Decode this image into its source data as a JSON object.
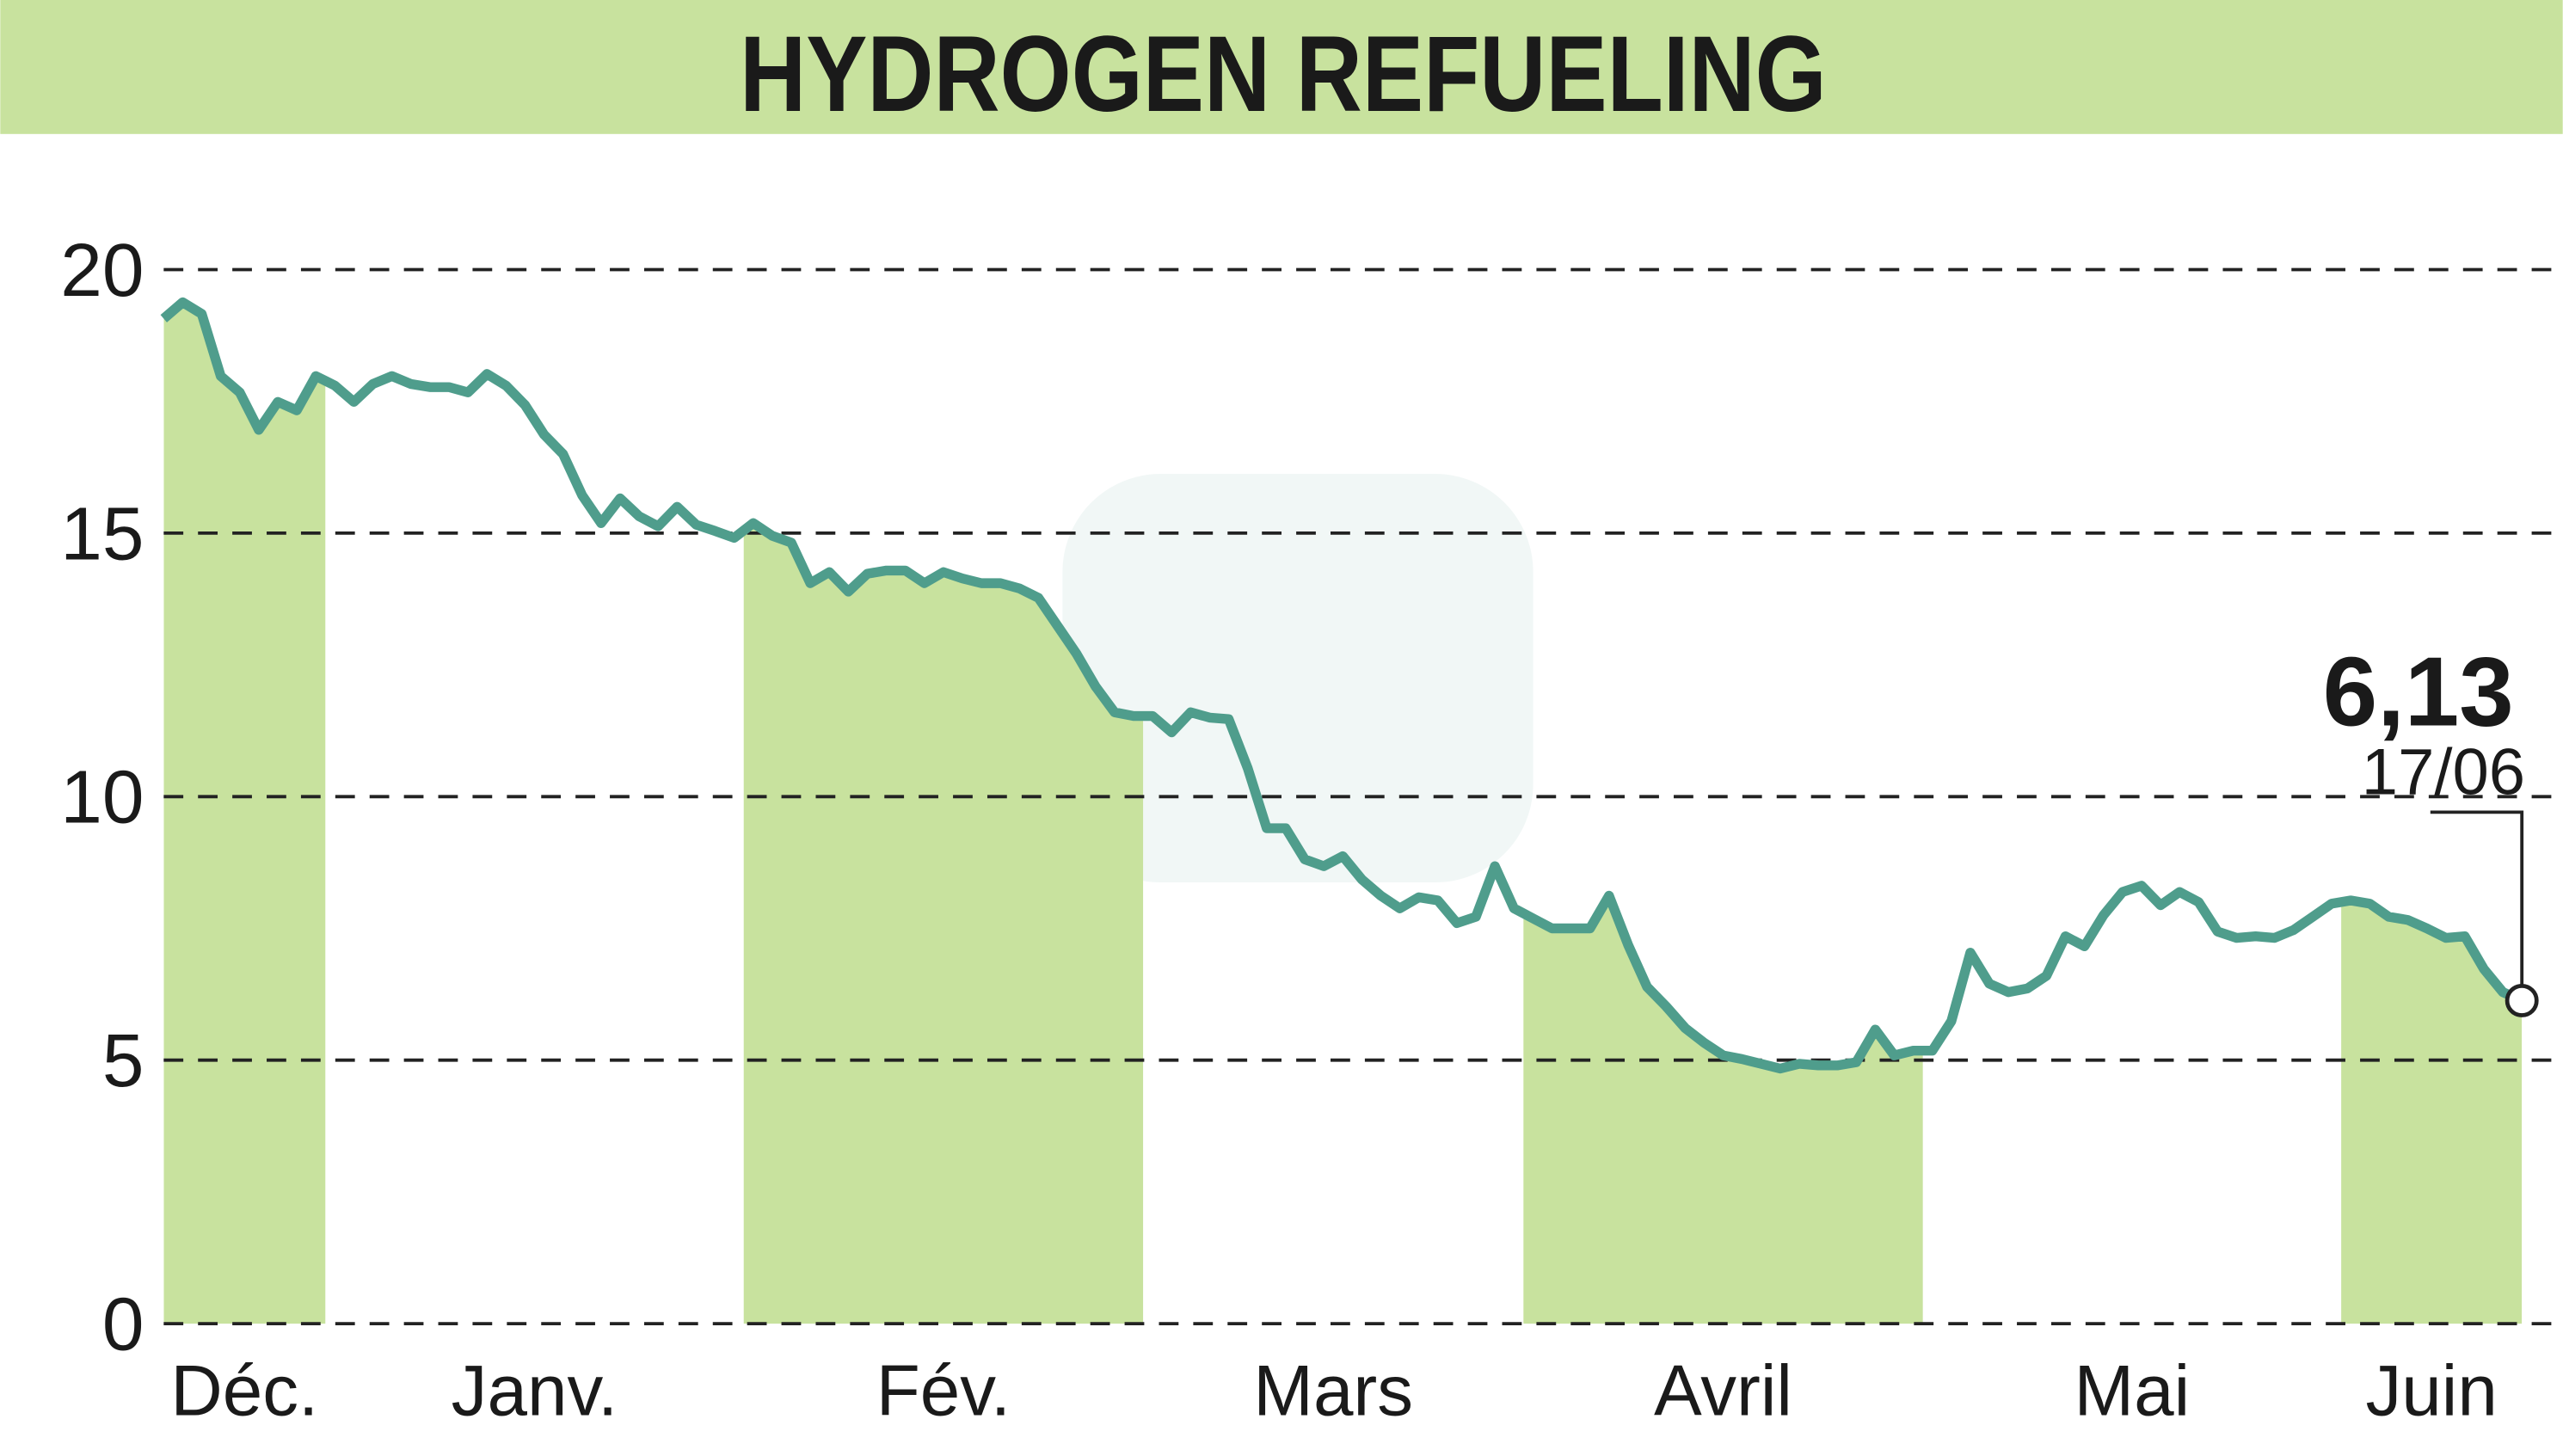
{
  "chart_data": {
    "type": "line",
    "title": "HYDROGEN REFUELING",
    "series": [
      {
        "color": "#4f9d8c",
        "values": [
          19.07,
          19.38,
          19.16,
          17.98,
          17.67,
          16.96,
          17.49,
          17.33,
          17.98,
          17.8,
          17.49,
          17.83,
          17.98,
          17.83,
          17.77,
          17.77,
          17.67,
          18.02,
          17.8,
          17.43,
          16.87,
          16.5,
          15.72,
          15.19,
          15.66,
          15.32,
          15.13,
          15.5,
          15.16,
          15.04,
          14.91,
          15.19,
          14.95,
          14.82,
          14.05,
          14.26,
          13.89,
          14.23,
          14.29,
          14.29,
          14.05,
          14.26,
          14.14,
          14.05,
          14.05,
          13.95,
          13.77,
          13.24,
          12.71,
          12.09,
          11.6,
          11.53,
          11.53,
          11.22,
          11.6,
          11.5,
          11.47,
          10.54,
          9.4,
          9.4,
          8.81,
          8.68,
          8.87,
          8.43,
          8.12,
          7.88,
          8.09,
          8.03,
          7.6,
          7.72,
          8.68,
          7.88,
          7.69,
          7.5,
          7.5,
          7.5,
          8.12,
          7.19,
          6.39,
          6.02,
          5.61,
          5.33,
          5.09,
          5.02,
          4.93,
          4.84,
          4.93,
          4.9,
          4.9,
          4.96,
          5.58,
          5.09,
          5.18,
          5.18,
          5.74,
          7.04,
          6.45,
          6.29,
          6.36,
          6.6,
          7.35,
          7.16,
          7.75,
          8.19,
          8.31,
          7.94,
          8.19,
          8.0,
          7.44,
          7.32,
          7.35,
          7.32,
          7.47,
          7.72,
          7.97,
          8.03,
          7.97,
          7.72,
          7.66,
          7.5,
          7.32,
          7.35,
          6.73,
          6.29,
          6.13
        ]
      }
    ],
    "xlim": [
      0,
      124
    ],
    "xticks": [
      {
        "value": 0,
        "label": "Déc."
      },
      {
        "value": 8.5,
        "label": "Janv."
      },
      {
        "value": 30.5,
        "label": "Fév."
      },
      {
        "value": 51.5,
        "label": "Mars"
      },
      {
        "value": 71.5,
        "label": "Avril"
      },
      {
        "value": 92.5,
        "label": "Mai"
      },
      {
        "value": 114.5,
        "label": "Juin"
      }
    ],
    "ylim": [
      0,
      20
    ],
    "yticks": [
      0,
      5,
      10,
      15,
      20
    ],
    "grid": true,
    "shade_color": "#c8e29e",
    "shade_alternate_months": true,
    "last_value_label": "6,13",
    "last_date": "17/06"
  }
}
